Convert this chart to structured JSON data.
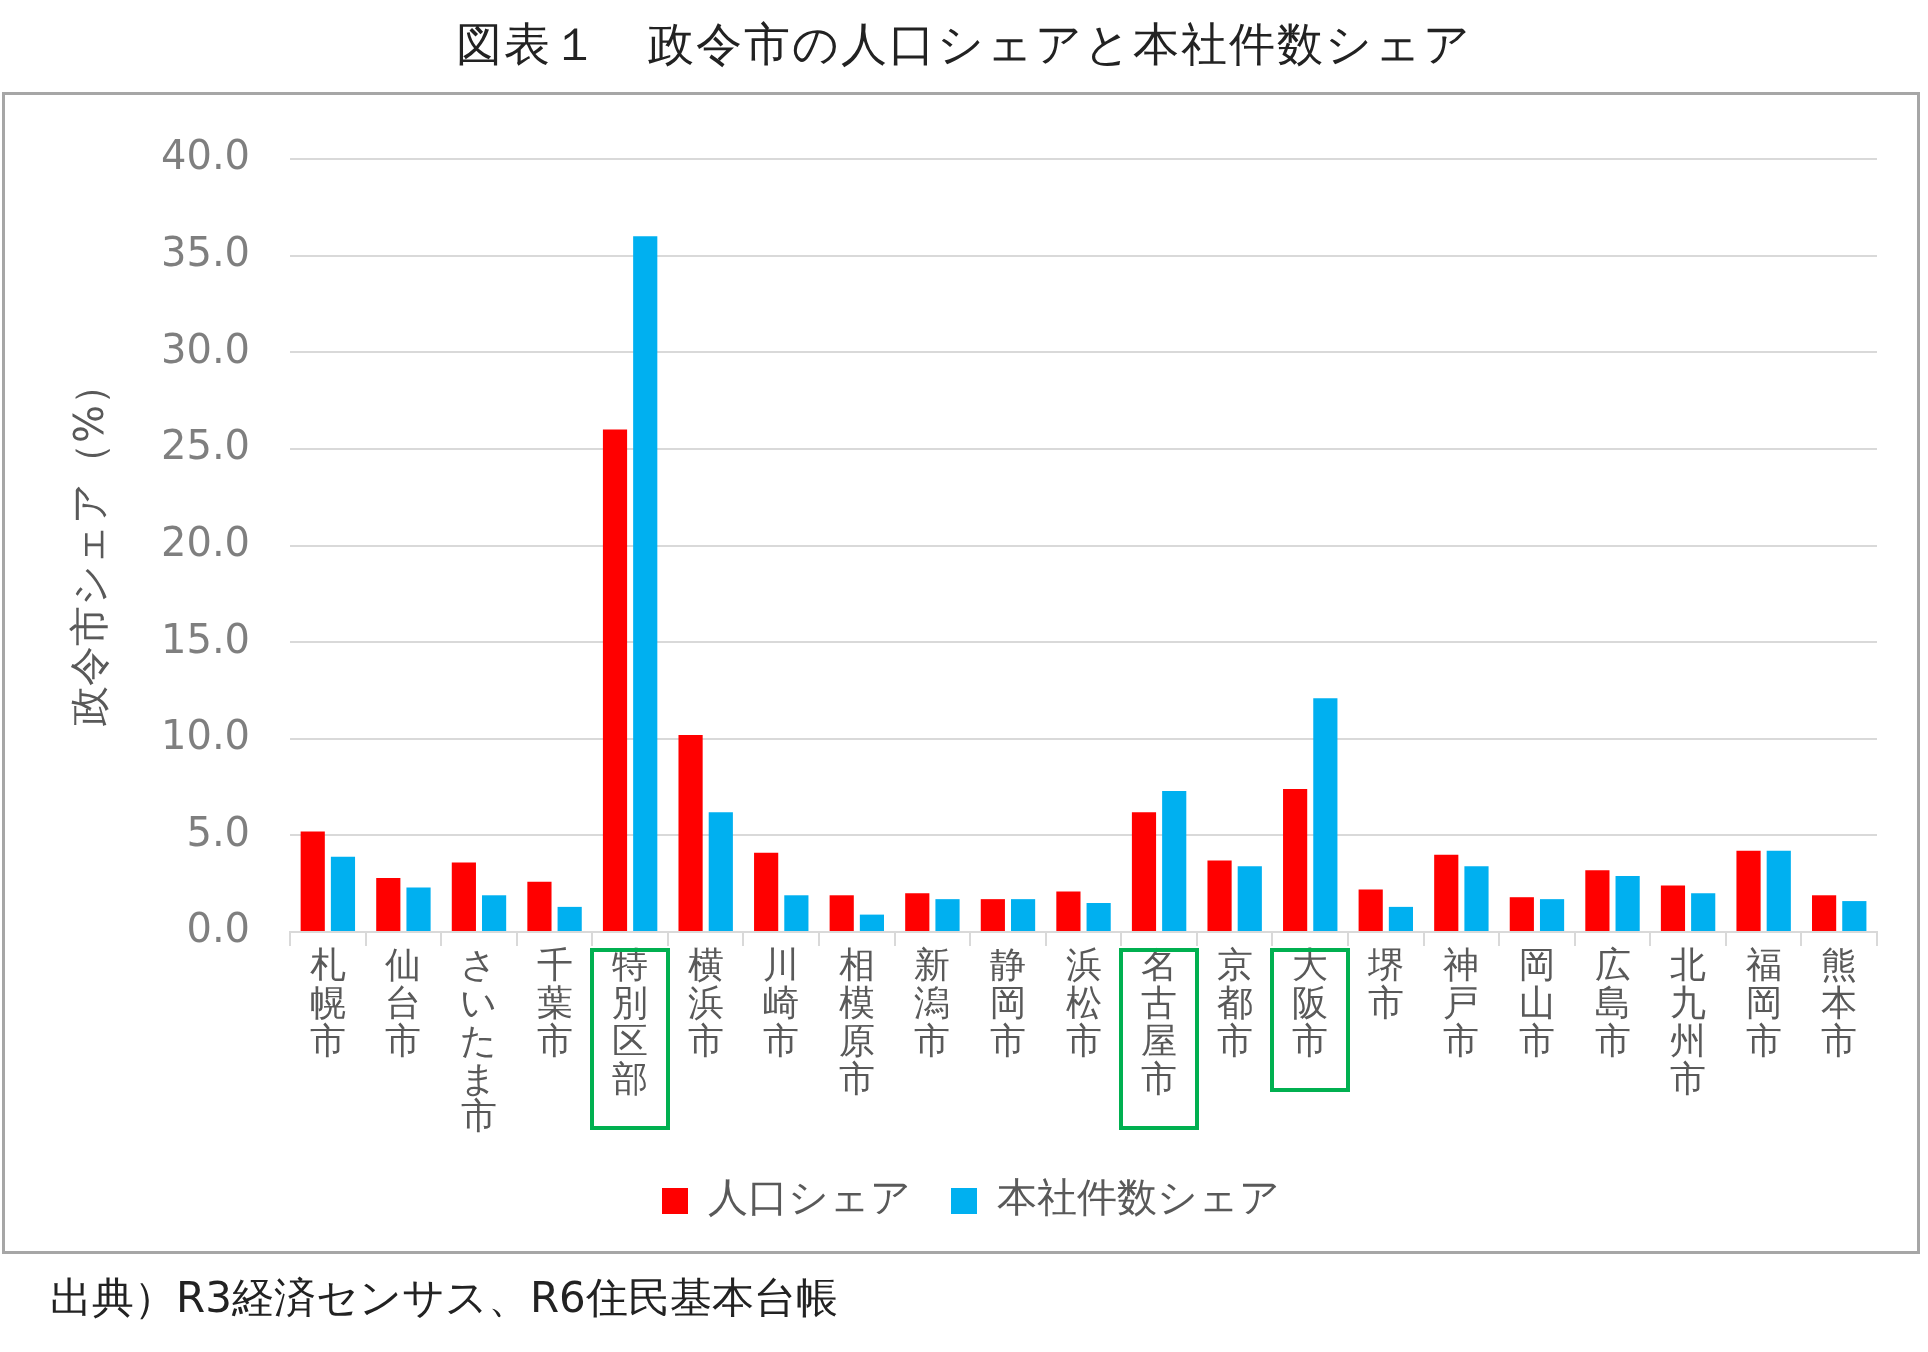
{
  "chart_data": {
    "type": "bar",
    "title": "図表１　政令市の人口シェアと本社件数シェア",
    "ylabel": "政令市シェア（%）",
    "categories": [
      "札幌市",
      "仙台市",
      "さいたま市",
      "千葉市",
      "特別区部",
      "横浜市",
      "川崎市",
      "相模原市",
      "新潟市",
      "静岡市",
      "浜松市",
      "名古屋市",
      "京都市",
      "大阪市",
      "堺市",
      "神戸市",
      "岡山市",
      "広島市",
      "北九州市",
      "福岡市",
      "熊本市"
    ],
    "series": [
      {
        "name": "人口シェア",
        "color": "#ff0000",
        "values": [
          5.2,
          2.8,
          3.6,
          2.6,
          26.0,
          10.2,
          4.1,
          1.9,
          2.0,
          1.7,
          2.1,
          6.2,
          3.7,
          7.4,
          2.2,
          4.0,
          1.8,
          3.2,
          2.4,
          4.2,
          1.9
        ]
      },
      {
        "name": "本社件数シェア",
        "color": "#00b0f0",
        "values": [
          3.9,
          2.3,
          1.9,
          1.3,
          36.0,
          6.2,
          1.9,
          0.9,
          1.7,
          1.7,
          1.5,
          7.3,
          3.4,
          12.1,
          1.3,
          3.4,
          1.7,
          2.9,
          2.0,
          4.2,
          1.6
        ]
      }
    ],
    "ylim": [
      0,
      40
    ],
    "yticks": [
      {
        "value": 0,
        "label": "0.0"
      },
      {
        "value": 5,
        "label": "5.0"
      },
      {
        "value": 10,
        "label": "10.0"
      },
      {
        "value": 15,
        "label": "15.0"
      },
      {
        "value": 20,
        "label": "20.0"
      },
      {
        "value": 25,
        "label": "25.0"
      },
      {
        "value": 30,
        "label": "30.0"
      },
      {
        "value": 35,
        "label": "35.0"
      },
      {
        "value": 40,
        "label": "40.0"
      }
    ],
    "grid": "y",
    "legend": "bottom",
    "annotations": [
      "出典）R3経済センサス、R6住民基本台帳"
    ]
  }
}
